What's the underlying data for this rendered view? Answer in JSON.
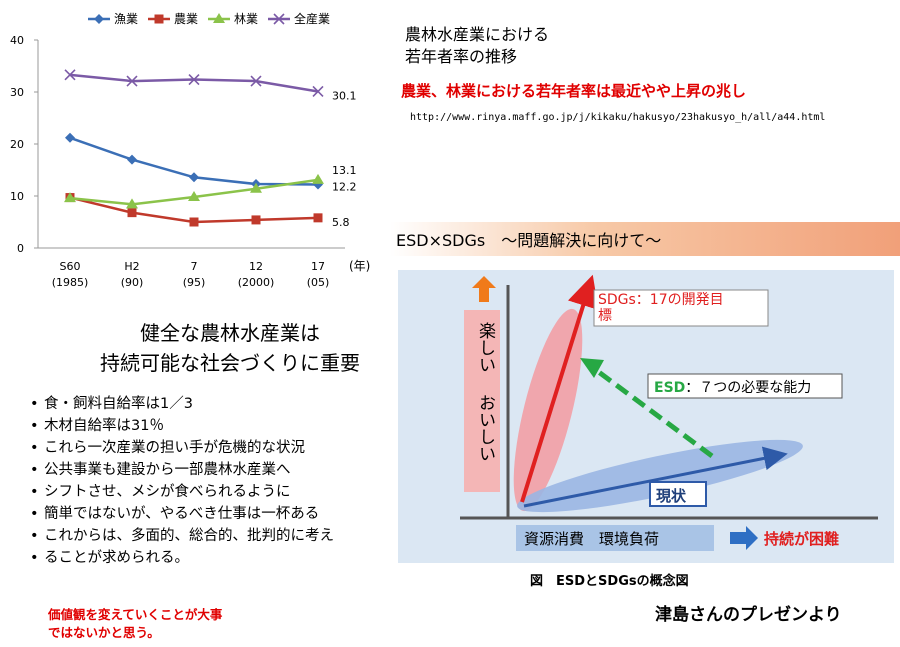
{
  "chart_data": {
    "type": "line",
    "categories": [
      "S60\n(1985)",
      "H2\n(90)",
      "7\n(95)",
      "12\n(2000)",
      "17\n(05)"
    ],
    "category_top": [
      "S60",
      "H2",
      "7",
      "12",
      "17"
    ],
    "category_bottom": [
      "(1985)",
      "(90)",
      "(95)",
      "(2000)",
      "(05)"
    ],
    "x_unit": "(年)",
    "ylim": [
      0,
      40
    ],
    "yticks": [
      0,
      10,
      20,
      30,
      40
    ],
    "series": [
      {
        "name": "漁業",
        "values": [
          21.2,
          17.0,
          13.6,
          12.3,
          12.2
        ],
        "color": "#3b6fb6",
        "marker": "diamond",
        "end_label": "12.2"
      },
      {
        "name": "農業",
        "values": [
          9.7,
          6.8,
          5.0,
          5.4,
          5.8
        ],
        "color": "#c0392b",
        "marker": "square",
        "end_label": "5.8"
      },
      {
        "name": "林業",
        "values": [
          9.6,
          8.4,
          9.8,
          11.4,
          13.1
        ],
        "color": "#8bc34a",
        "marker": "triangle",
        "end_label": "13.1"
      },
      {
        "name": "全産業",
        "values": [
          33.3,
          32.1,
          32.4,
          32.1,
          30.1
        ],
        "color": "#7b5aa6",
        "marker": "x",
        "end_label": "30.1"
      }
    ],
    "legend_placement": "top",
    "grid": false
  },
  "title_lines": [
    "農林水産業における",
    "若年者率の推移"
  ],
  "red_note": "農業、林業における若年者率は最近やや上昇の兆し",
  "source_url": "http://www.rinya.maff.go.jp/j/kikaku/hakusyo/23hakusyo_h/all/a44.html",
  "heading_lines": [
    "健全な農林水産業は",
    "持続可能な社会づくりに重要"
  ],
  "bullets": [
    "食・飼料自給率は1／3",
    "木材自給率は31％",
    "これら一次産業の担い手が危機的な状況",
    "公共事業も建設から一部農林水産業へ",
    "シフトさせ、メシが食べられるように",
    "簡単ではないが、やるべき仕事は一杯ある",
    "これからは、多面的、総合的、批判的に考え",
    "ることが求められる。"
  ],
  "value_note_lines": [
    "価値観を変えていくことが大事",
    "ではないかと思う。"
  ],
  "esd": {
    "band_title": "ESD×SDGs　～問題解決に向けて～",
    "y_axis_label_1": "楽しい",
    "y_axis_label_2": "おいしい",
    "sdgs_label_1": "SDGs：17の開発目",
    "sdgs_label_2": "標",
    "esd_label_prefix": "ESD",
    "esd_label_rest": "：７つの必要な能力",
    "current_label": "現状",
    "x_axis_label": "資源消費　環境負荷",
    "difficult_label": "持続が困難",
    "caption": "図　ESDとSDGsの概念図"
  },
  "credit": "津島さんのプレゼンより"
}
